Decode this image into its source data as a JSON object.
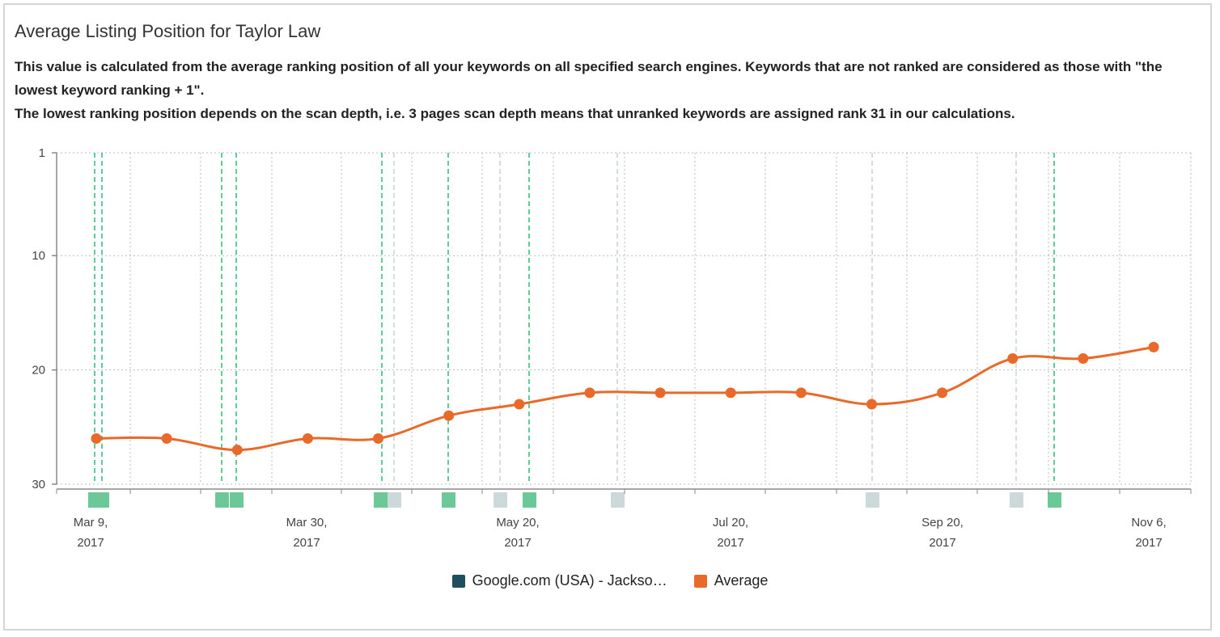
{
  "header": {
    "title": "Average Listing Position for Taylor Law",
    "description_line1": "This value is calculated from the average ranking position of all your keywords on all specified search engines. Keywords that are not ranked are considered as those with \"the lowest keyword ranking + 1\".",
    "description_line2": "The lowest ranking position depends on the scan depth, i.e. 3 pages scan depth means that unranked keywords are assigned rank 31 in our calculations."
  },
  "colors": {
    "average": "#e8692a",
    "engine": "#1f4e5f",
    "event_green": "#2eb872",
    "event_green_fill": "#6cc896",
    "event_gray": "#b8c8cc",
    "event_gray_fill": "#cdd8db",
    "grid": "#bbbbbb",
    "axis": "#888888"
  },
  "legend": [
    {
      "label": "Google.com (USA) - Jackso…",
      "color": "#1f4e5f"
    },
    {
      "label": "Average",
      "color": "#e8692a"
    }
  ],
  "chart_data": {
    "type": "line",
    "title": "Average Listing Position for Taylor Law",
    "ylim": [
      30,
      1
    ],
    "y_inverted": true,
    "y_ticks": [
      "1",
      "10",
      "20",
      "30"
    ],
    "x_tick_labels": [
      {
        "line1": "Mar 9,",
        "line2": "2017"
      },
      {
        "line1": "Mar 30,",
        "line2": "2017"
      },
      {
        "line1": "May 20,",
        "line2": "2017"
      },
      {
        "line1": "Jul 20,",
        "line2": "2017"
      },
      {
        "line1": "Sep 20,",
        "line2": "2017"
      },
      {
        "line1": "Nov 6,",
        "line2": "2017"
      }
    ],
    "grid": true,
    "legend_position": "bottom-center",
    "series": [
      {
        "name": "Average",
        "values": [
          26,
          26,
          27,
          26,
          26,
          24,
          23,
          22,
          22,
          22,
          22,
          23,
          22,
          19,
          19,
          18
        ]
      }
    ],
    "events": [
      {
        "type": "green"
      },
      {
        "type": "green"
      },
      {
        "type": "green"
      },
      {
        "type": "green"
      },
      {
        "type": "green"
      },
      {
        "type": "gray"
      },
      {
        "type": "green"
      },
      {
        "type": "gray"
      },
      {
        "type": "green"
      },
      {
        "type": "gray"
      },
      {
        "type": "gray"
      },
      {
        "type": "gray"
      },
      {
        "type": "green"
      }
    ]
  }
}
